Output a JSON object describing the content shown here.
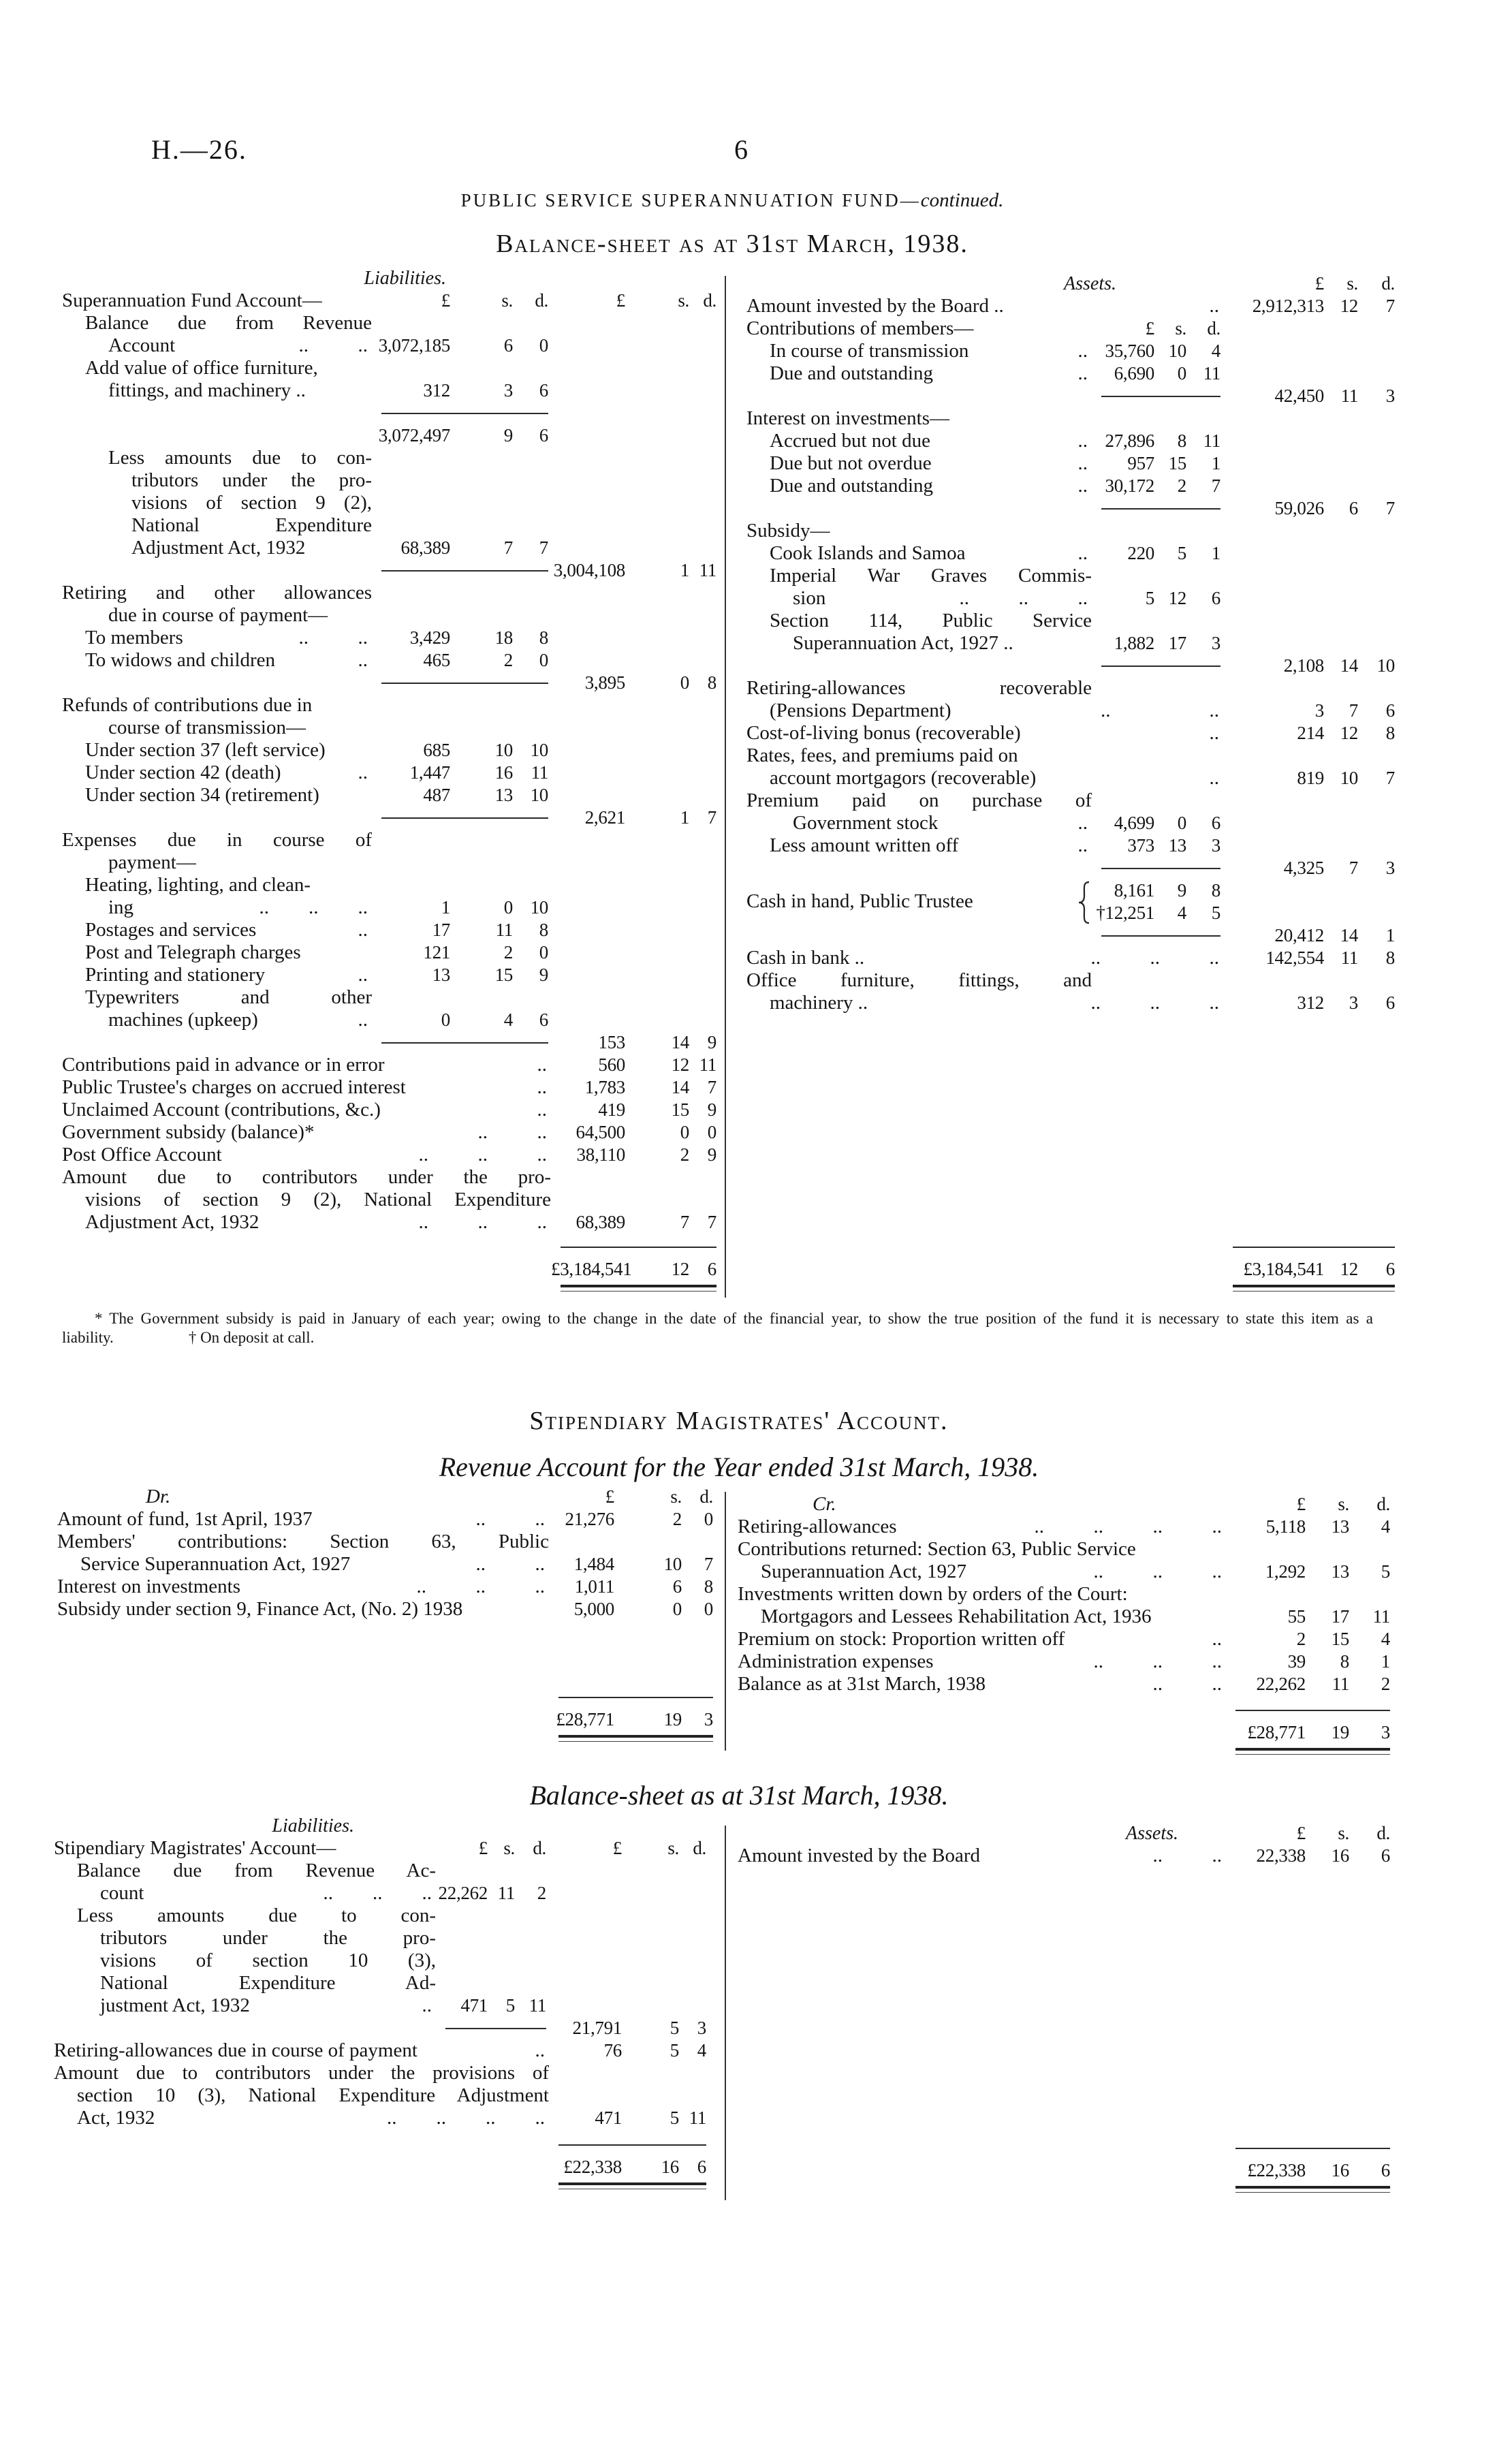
{
  "header": {
    "ref": "H.—26.",
    "page": "6"
  },
  "fund": {
    "title": "PUBLIC SERVICE SUPERANNUATION FUND—",
    "title_cont": "continued.",
    "subtitle": "Balance-sheet as at 31st March, 1938.",
    "liabilities": [
      {
        "label": "Liabilities.",
        "style": "caption"
      },
      {
        "label": "Superannuation Fund Account—",
        "i": [
          "£",
          "s.",
          "d."
        ],
        "o": [
          "£",
          "s.",
          "d."
        ]
      },
      {
        "label": "Balance due from Revenue",
        "level": 1,
        "j": true
      },
      {
        "label": "Account",
        "level": 2,
        "dots": "..          ..",
        "i": [
          "3,072,185",
          "6",
          "0"
        ]
      },
      {
        "label": "Add value of office furniture,",
        "level": 1
      },
      {
        "label": "fittings, and machinery ..",
        "level": 2,
        "i": [
          "312",
          "3",
          "6"
        ]
      },
      {
        "rule": "inner"
      },
      {
        "i": [
          "3,072,497",
          "9",
          "6"
        ]
      },
      {
        "label": "Less amounts due to con-",
        "level": 2,
        "j": true
      },
      {
        "label": "tributors under the pro-",
        "level": 3,
        "j": true
      },
      {
        "label": "visions of section 9 (2),",
        "level": 3,
        "j": true
      },
      {
        "label": "National Expenditure",
        "level": 3,
        "j": true
      },
      {
        "label": "Adjustment Act, 1932",
        "level": 3,
        "i": [
          "68,389",
          "7",
          "7"
        ]
      },
      {
        "rule": "inner",
        "o": [
          "3,004,108",
          "1",
          "11"
        ]
      },
      {
        "label": "Retiring and other allowances",
        "j": true
      },
      {
        "label": "due in course of payment—",
        "level": 2
      },
      {
        "label": "To members",
        "level": 1,
        "dots": "..          ..",
        "i": [
          "3,429",
          "18",
          "8"
        ]
      },
      {
        "label": "To widows and children",
        "level": 1,
        "dots": "..",
        "i": [
          "465",
          "2",
          "0"
        ]
      },
      {
        "rule": "inner",
        "o": [
          "3,895",
          "0",
          "8"
        ]
      },
      {
        "label": "Refunds of contributions due in"
      },
      {
        "label": "course of transmission—",
        "level": 2
      },
      {
        "label": "Under section 37 (left service)",
        "level": 1,
        "i": [
          "685",
          "10",
          "10"
        ]
      },
      {
        "label": "Under section 42 (death)",
        "level": 1,
        "dots": "..",
        "i": [
          "1,447",
          "16",
          "11"
        ]
      },
      {
        "label": "Under section 34 (retirement)",
        "level": 1,
        "i": [
          "487",
          "13",
          "10"
        ]
      },
      {
        "rule": "inner",
        "o": [
          "2,621",
          "1",
          "7"
        ]
      },
      {
        "label": "Expenses due in course of",
        "j": true
      },
      {
        "label": "payment—",
        "level": 2
      },
      {
        "label": "Heating, lighting, and clean-",
        "level": 1
      },
      {
        "label": "ing",
        "level": 2,
        "dots": "..        ..        ..",
        "i": [
          "1",
          "0",
          "10"
        ]
      },
      {
        "label": "Postages and services",
        "level": 1,
        "dots": "..",
        "i": [
          "17",
          "11",
          "8"
        ]
      },
      {
        "label": "Post and Telegraph charges",
        "level": 1,
        "i": [
          "121",
          "2",
          "0"
        ]
      },
      {
        "label": "Printing and stationery",
        "level": 1,
        "dots": "..",
        "i": [
          "13",
          "15",
          "9"
        ]
      },
      {
        "label": "Typewriters and other",
        "level": 1,
        "j": true
      },
      {
        "label": "machines (upkeep)",
        "level": 2,
        "dots": "..",
        "i": [
          "0",
          "4",
          "6"
        ]
      },
      {
        "rule": "inner",
        "o": [
          "153",
          "14",
          "9"
        ]
      },
      {
        "label": "Contributions paid in advance or in error",
        "dots": "..",
        "wide": true,
        "o": [
          "560",
          "12",
          "11"
        ]
      },
      {
        "label": "Public Trustee's charges on accrued interest",
        "dots": "..",
        "wide": true,
        "o": [
          "1,783",
          "14",
          "7"
        ]
      },
      {
        "label": "Unclaimed Account (contributions, &c.)",
        "dots": "..",
        "wide": true,
        "o": [
          "419",
          "15",
          "9"
        ]
      },
      {
        "label": "Government subsidy (balance)*",
        "dots": "..          ..",
        "wide": true,
        "o": [
          "64,500",
          "0",
          "0"
        ]
      },
      {
        "label": "Post Office Account",
        "dots": "..          ..          ..",
        "wide": true,
        "o": [
          "38,110",
          "2",
          "9"
        ]
      },
      {
        "label": "Amount due to contributors under the pro-",
        "wide": true,
        "j": true
      },
      {
        "label": "visions of section 9 (2), National Expenditure",
        "level": 1,
        "wide": true,
        "j": true
      },
      {
        "label": "Adjustment Act, 1932",
        "level": 1,
        "dots": "..          ..          ..",
        "wide": true,
        "o": [
          "68,389",
          "7",
          "7"
        ]
      }
    ],
    "liabilities_total": [
      "£3,184,541",
      "12",
      "6"
    ],
    "assets": [
      {
        "label": "Assets.",
        "style": "caption",
        "o": [
          "£",
          "s.",
          "d."
        ]
      },
      {
        "label": "Amount invested by the Board ..",
        "dots": "..",
        "wide": true,
        "o": [
          "2,912,313",
          "12",
          "7"
        ]
      },
      {
        "label": "Contributions of members—",
        "i": [
          "£",
          "s.",
          "d."
        ]
      },
      {
        "label": "In course of transmission",
        "level": 1,
        "dots": "..",
        "i": [
          "35,760",
          "10",
          "4"
        ]
      },
      {
        "label": "Due and outstanding",
        "level": 1,
        "dots": "..",
        "i": [
          "6,690",
          "0",
          "11"
        ]
      },
      {
        "rule": "inner",
        "o": [
          "42,450",
          "11",
          "3"
        ]
      },
      {
        "label": "Interest on investments—"
      },
      {
        "label": "Accrued but not due",
        "level": 1,
        "dots": "..",
        "i": [
          "27,896",
          "8",
          "11"
        ]
      },
      {
        "label": "Due but not overdue",
        "level": 1,
        "dots": "..",
        "i": [
          "957",
          "15",
          "1"
        ]
      },
      {
        "label": "Due and outstanding",
        "level": 1,
        "dots": "..",
        "i": [
          "30,172",
          "2",
          "7"
        ]
      },
      {
        "rule": "inner",
        "o": [
          "59,026",
          "6",
          "7"
        ]
      },
      {
        "label": "Subsidy—"
      },
      {
        "label": "Cook Islands and Samoa",
        "level": 1,
        "dots": "..",
        "i": [
          "220",
          "5",
          "1"
        ]
      },
      {
        "label": "Imperial War Graves Commis-",
        "level": 1,
        "j": true
      },
      {
        "label": "sion",
        "level": 2,
        "dots": "..          ..          ..",
        "i": [
          "5",
          "12",
          "6"
        ]
      },
      {
        "label": "Section 114, Public Service",
        "level": 1,
        "j": true
      },
      {
        "label": "Superannuation Act, 1927 ..",
        "level": 2,
        "i": [
          "1,882",
          "17",
          "3"
        ]
      },
      {
        "rule": "inner",
        "o": [
          "2,108",
          "14",
          "10"
        ]
      },
      {
        "label": "Retiring-allowances recoverable",
        "j": true
      },
      {
        "label": "(Pensions Department)",
        "level": 1,
        "dots": "..                    ..",
        "wide": true,
        "o": [
          "3",
          "7",
          "6"
        ]
      },
      {
        "label": "Cost-of-living bonus (recoverable)",
        "dots": "..",
        "wide": true,
        "o": [
          "214",
          "12",
          "8"
        ]
      },
      {
        "label": "Rates, fees, and premiums paid on"
      },
      {
        "label": "account mortgagors (recoverable)",
        "level": 1,
        "dots": "..",
        "wide": true,
        "o": [
          "819",
          "10",
          "7"
        ]
      },
      {
        "label": "Premium paid on purchase of",
        "j": true
      },
      {
        "label": "Government stock",
        "level": 2,
        "dots": "..",
        "i": [
          "4,699",
          "0",
          "6"
        ]
      },
      {
        "label": "Less amount written off",
        "level": 1,
        "dots": "..",
        "i": [
          "373",
          "13",
          "3"
        ]
      },
      {
        "rule": "inner",
        "o": [
          "4,325",
          "7",
          "3"
        ]
      },
      {
        "label": "Cash in hand, Public Trustee",
        "brace": true,
        "i": [
          "8,161",
          "9",
          "8"
        ]
      },
      {
        "i": [
          "†12,251",
          "4",
          "5"
        ]
      },
      {
        "rule": "inner",
        "o": [
          "20,412",
          "14",
          "1"
        ]
      },
      {
        "label": "Cash in bank ..",
        "dots": "..          ..          ..",
        "wide": true,
        "o": [
          "142,554",
          "11",
          "8"
        ]
      },
      {
        "label": "Office furniture, fittings, and",
        "j": true
      },
      {
        "label": "machinery ..",
        "level": 1,
        "dots": "..          ..          ..",
        "wide": true,
        "o": [
          "312",
          "3",
          "6"
        ]
      }
    ],
    "assets_total": [
      "£3,184,541",
      "12",
      "6"
    ],
    "footnote": "* The Government subsidy is paid in January of each year; owing to the change in the date of the financial year, to show the true position of the fund it is necessary to state this item as a liability.",
    "footnote_dagger": "† On deposit at call."
  },
  "magistrates": {
    "title": "Stipendiary Magistrates' Account.",
    "revenue_title": "Revenue Account for the Year ended 31st March, 1938.",
    "revenue_dr": [
      {
        "label": "Dr.",
        "style": "dr",
        "o": [
          "£",
          "s.",
          "d."
        ]
      },
      {
        "label": "Amount of fund, 1st April, 1937",
        "dots": "..          ..",
        "o": [
          "21,276",
          "2",
          "0"
        ]
      },
      {
        "label": "Members' contributions: Section 63, Public",
        "j": true
      },
      {
        "label": "Service Superannuation Act, 1927",
        "level": 1,
        "dots": "..          ..",
        "o": [
          "1,484",
          "10",
          "7"
        ]
      },
      {
        "label": "Interest on investments",
        "dots": "..          ..          ..",
        "o": [
          "1,011",
          "6",
          "8"
        ]
      },
      {
        "label": "Subsidy under section 9, Finance Act, (No. 2) 1938",
        "o": [
          "5,000",
          "0",
          "0"
        ]
      }
    ],
    "revenue_dr_total": [
      "£28,771",
      "19",
      "3"
    ],
    "revenue_cr": [
      {
        "label": "Cr.",
        "style": "dr",
        "o": [
          "£",
          "s.",
          "d."
        ]
      },
      {
        "label": "Retiring-allowances",
        "dots": "..          ..          ..          ..",
        "o": [
          "5,118",
          "13",
          "4"
        ]
      },
      {
        "label": "Contributions returned: Section 63, Public Service"
      },
      {
        "label": "Superannuation Act, 1927",
        "level": 1,
        "dots": "..          ..          ..",
        "o": [
          "1,292",
          "13",
          "5"
        ]
      },
      {
        "label": "Investments written down by orders of the Court:"
      },
      {
        "label": "Mortgagors and Lessees Rehabilitation Act, 1936",
        "level": 1,
        "o": [
          "55",
          "17",
          "11"
        ]
      },
      {
        "label": "Premium on stock: Proportion written off",
        "dots": "..",
        "o": [
          "2",
          "15",
          "4"
        ]
      },
      {
        "label": "Administration expenses",
        "dots": "..          ..          ..",
        "o": [
          "39",
          "8",
          "1"
        ]
      },
      {
        "label": "Balance as at 31st March, 1938",
        "dots": "..          ..",
        "o": [
          "22,262",
          "11",
          "2"
        ]
      }
    ],
    "revenue_cr_total": [
      "£28,771",
      "19",
      "3"
    ],
    "balance_title": "Balance-sheet as at 31st March, 1938.",
    "liabilities": [
      {
        "label": "Liabilities.",
        "style": "caption"
      },
      {
        "label": "Stipendiary Magistrates' Account—",
        "i": [
          "£",
          "s.",
          "d."
        ],
        "o": [
          "£",
          "s.",
          "d."
        ]
      },
      {
        "label": "Balance due from Revenue Ac-",
        "level": 1,
        "j": true
      },
      {
        "label": "count",
        "level": 2,
        "dots": "..        ..        ..",
        "i": [
          "22,262",
          "11",
          "2"
        ]
      },
      {
        "label": "Less amounts due to con-",
        "level": 1,
        "j": true
      },
      {
        "label": "tributors under the pro-",
        "level": 2,
        "j": true
      },
      {
        "label": "visions of section 10 (3),",
        "level": 2,
        "j": true
      },
      {
        "label": "National Expenditure Ad-",
        "level": 2,
        "j": true
      },
      {
        "label": "justment Act, 1932",
        "level": 2,
        "dots": "..",
        "i": [
          "471",
          "5",
          "11"
        ]
      },
      {
        "rule": "inner",
        "o": [
          "21,791",
          "5",
          "3"
        ]
      },
      {
        "label": "Retiring-allowances due in course of payment",
        "dots": "..",
        "wide": true,
        "o": [
          "76",
          "5",
          "4"
        ]
      },
      {
        "label": "Amount due to contributors under the provisions of",
        "wide": true,
        "j": true
      },
      {
        "label": "section 10 (3), National Expenditure Adjustment",
        "level": 1,
        "wide": true,
        "j": true
      },
      {
        "label": "Act, 1932",
        "level": 1,
        "dots": "..        ..        ..        ..",
        "wide": true,
        "o": [
          "471",
          "5",
          "11"
        ]
      }
    ],
    "liabilities_total": [
      "£22,338",
      "16",
      "6"
    ],
    "assets": [
      {
        "label": "Assets.",
        "style": "caption",
        "o": [
          "£",
          "s.",
          "d."
        ]
      },
      {
        "label": "Amount invested by the Board",
        "dots": "..          ..",
        "o": [
          "22,338",
          "16",
          "6"
        ]
      }
    ],
    "assets_total": [
      "£22,338",
      "16",
      "6"
    ]
  }
}
